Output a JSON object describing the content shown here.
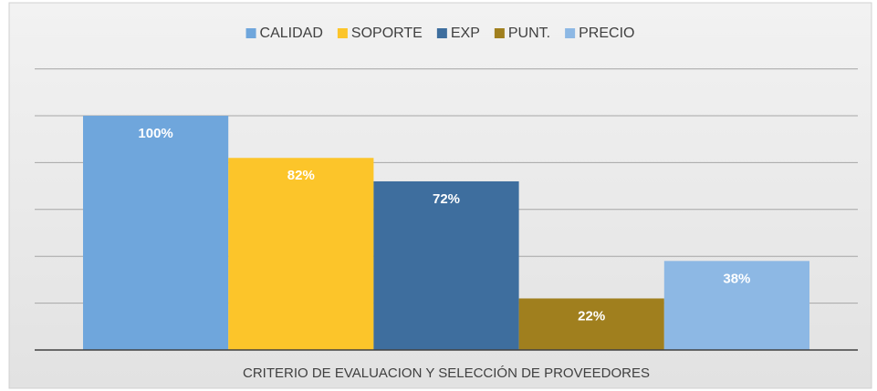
{
  "chart_data": {
    "type": "bar",
    "categories": [
      "CRITERIO DE EVALUACION Y SELECCIÓN DE PROVEEDORES"
    ],
    "series": [
      {
        "name": "CALIDAD",
        "color": "#6fa6dc",
        "values": [
          100
        ],
        "value_labels": [
          "100%"
        ]
      },
      {
        "name": "SOPORTE",
        "color": "#fcc52a",
        "values": [
          82
        ],
        "value_labels": [
          "82%"
        ]
      },
      {
        "name": "EXP",
        "color": "#3e6e9e",
        "values": [
          72
        ],
        "value_labels": [
          "72%"
        ]
      },
      {
        "name": "PUNT.",
        "color": "#a07f1e",
        "values": [
          22
        ],
        "value_labels": [
          "22%"
        ]
      },
      {
        "name": "PRECIO",
        "color": "#8db8e4",
        "values": [
          38
        ],
        "value_labels": [
          "38%"
        ]
      }
    ],
    "ylim": [
      0,
      120
    ],
    "yticks": [
      0,
      20,
      40,
      60,
      80,
      100,
      120
    ],
    "grid": true,
    "legend": "top"
  }
}
